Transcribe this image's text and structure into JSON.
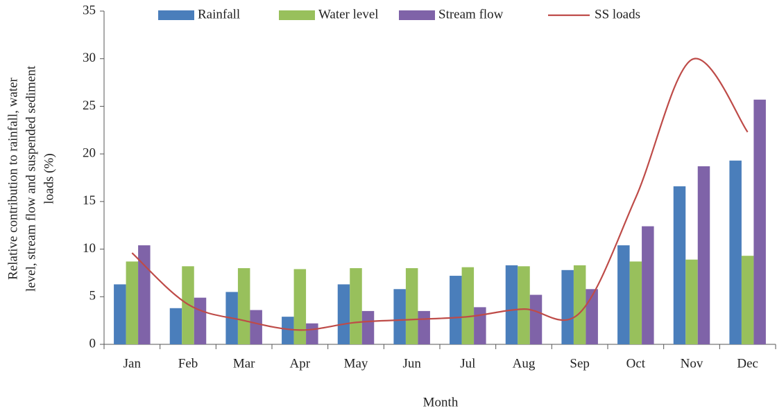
{
  "chart_data": {
    "type": "bar",
    "x_label": "Month",
    "y_label": [
      "Relative contribution to rainfall, water",
      "level, stream flow and suspended sediment",
      "loads (%)"
    ],
    "categories": [
      "Jan",
      "Feb",
      "Mar",
      "Apr",
      "May",
      "Jun",
      "Jul",
      "Aug",
      "Sep",
      "Oct",
      "Nov",
      "Dec"
    ],
    "series": [
      {
        "name": "Rainfall",
        "type": "bar",
        "color": "#4a7ebb",
        "values": [
          6.3,
          3.8,
          5.5,
          2.9,
          6.3,
          5.8,
          7.2,
          8.3,
          7.8,
          10.4,
          16.6,
          19.3
        ]
      },
      {
        "name": "Water level",
        "type": "bar",
        "color": "#98c05c",
        "values": [
          8.7,
          8.2,
          8.0,
          7.9,
          8.0,
          8.0,
          8.1,
          8.2,
          8.3,
          8.7,
          8.9,
          9.3
        ]
      },
      {
        "name": "Stream flow",
        "type": "bar",
        "color": "#7f63a8",
        "values": [
          10.4,
          4.9,
          3.6,
          2.2,
          3.5,
          3.5,
          3.9,
          5.2,
          5.8,
          12.4,
          18.7,
          25.7
        ]
      },
      {
        "name": "SS loads",
        "type": "line",
        "color": "#be4b48",
        "values": [
          9.6,
          4.2,
          2.5,
          1.5,
          2.3,
          2.6,
          2.9,
          3.7,
          3.3,
          15.4,
          29.9,
          22.3
        ]
      }
    ],
    "ylim": [
      0,
      35
    ],
    "yticks": [
      0,
      5,
      10,
      15,
      20,
      25,
      30,
      35
    ],
    "grid": false,
    "legend": "top"
  }
}
